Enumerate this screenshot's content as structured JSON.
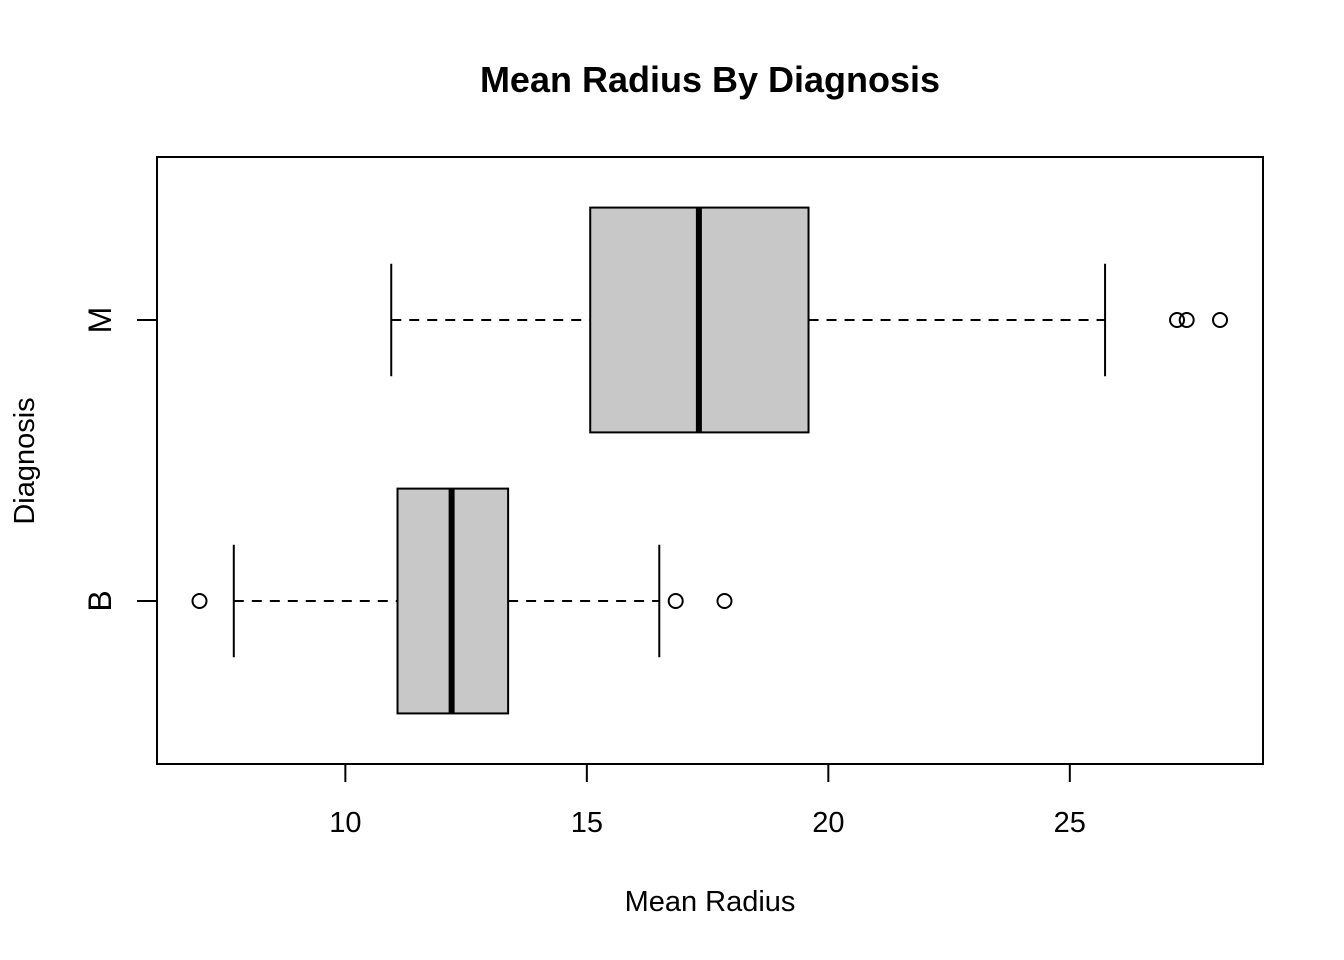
{
  "chart_data": {
    "type": "boxplot",
    "orientation": "horizontal",
    "title": "Mean Radius By Diagnosis",
    "xlabel": "Mean Radius",
    "ylabel": "Diagnosis",
    "xlim": [
      6.1,
      29.0
    ],
    "xticks": [
      10,
      15,
      20,
      25
    ],
    "grid": false,
    "box_color": "#c8c8c8",
    "categories": [
      "B",
      "M"
    ],
    "boxes": [
      {
        "category": "B",
        "whisker_low": 7.69,
        "q1": 11.08,
        "median": 12.2,
        "q3": 13.37,
        "whisker_high": 16.5,
        "outliers": [
          6.98,
          16.84,
          17.85
        ]
      },
      {
        "category": "M",
        "whisker_low": 10.95,
        "q1": 15.07,
        "median": 17.32,
        "q3": 19.59,
        "whisker_high": 25.73,
        "outliers": [
          27.22,
          27.42,
          28.11
        ]
      }
    ]
  }
}
